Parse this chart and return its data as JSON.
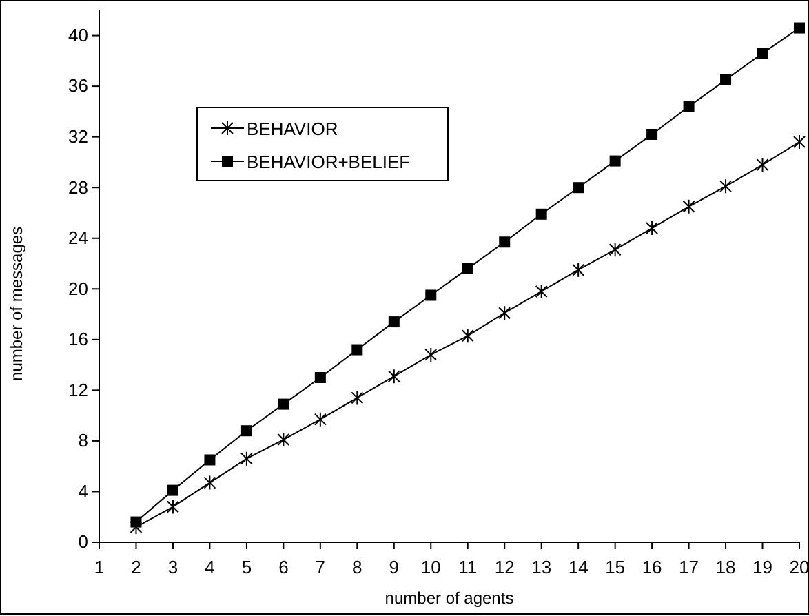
{
  "chart_data": {
    "type": "line",
    "xlabel": "number  of  agents",
    "ylabel": "number of messages",
    "x": [
      2,
      3,
      4,
      5,
      6,
      7,
      8,
      9,
      10,
      11,
      12,
      13,
      14,
      15,
      16,
      17,
      18,
      19,
      20
    ],
    "series": [
      {
        "name": "BEHAVIOR",
        "color": "#000000",
        "marker": "cross",
        "values": [
          1.2,
          2.8,
          4.7,
          6.6,
          8.1,
          9.7,
          11.4,
          13.1,
          14.8,
          16.3,
          18.1,
          19.8,
          21.5,
          23.1,
          24.8,
          26.5,
          28.1,
          29.8,
          31.6
        ]
      },
      {
        "name": "BEHAVIOR+BELIEF",
        "color": "#000000",
        "marker": "square",
        "values": [
          1.6,
          4.1,
          6.5,
          8.8,
          10.9,
          13.0,
          15.2,
          17.4,
          19.5,
          21.6,
          23.7,
          25.9,
          28.0,
          30.1,
          32.2,
          34.4,
          36.5,
          38.6,
          40.6
        ]
      }
    ],
    "xlim": [
      1,
      20
    ],
    "xticks": [
      1,
      2,
      3,
      4,
      5,
      6,
      7,
      8,
      9,
      10,
      11,
      12,
      13,
      14,
      15,
      16,
      17,
      18,
      19,
      20
    ],
    "ylim": [
      0,
      42
    ],
    "yticks": [
      0,
      4,
      8,
      12,
      16,
      20,
      24,
      28,
      32,
      36,
      40
    ],
    "grid": false,
    "legend": "top left",
    "line_style": "solid"
  }
}
